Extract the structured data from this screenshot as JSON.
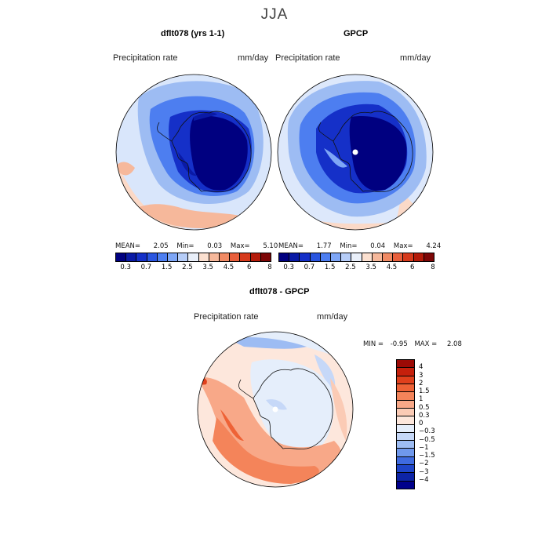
{
  "figure": {
    "season": "JJA",
    "panels": [
      {
        "title": "dflt078 (yrs 1-1)",
        "field_label": "Precipitation rate",
        "units": "mm/day",
        "stats": {
          "mean_label": "MEAN=",
          "mean": "2.05",
          "min_label": "Min=",
          "min": "0.03",
          "max_label": "Max=",
          "max": "5.10"
        }
      },
      {
        "title": "GPCP",
        "field_label": "Precipitation rate",
        "units": "mm/day",
        "stats": {
          "mean_label": "MEAN=",
          "mean": "1.77",
          "min_label": "Min=",
          "min": "0.04",
          "max_label": "Max=",
          "max": "4.24"
        }
      },
      {
        "title": "dflt078 - GPCP",
        "field_label": "Precipitation rate",
        "units": "mm/day",
        "stats": {
          "min_label": "MIN =",
          "min": "-0.95",
          "max_label": "MAX =",
          "max": "2.08"
        }
      }
    ],
    "precip_colorbar": {
      "labels": [
        "0.3",
        "0.7",
        "1.5",
        "2.5",
        "3.5",
        "4.5",
        "6",
        "8"
      ],
      "colors": [
        "#000080",
        "#0a1aa6",
        "#1530c8",
        "#2a55e0",
        "#4d7ef0",
        "#7ea6f6",
        "#b6cdf8",
        "#e9eff9",
        "#fbe0d0",
        "#f6b89b",
        "#f08a64",
        "#e85f3c",
        "#d63a1c",
        "#b41b0a",
        "#7d0707"
      ]
    },
    "diff_colorbar": {
      "labels": [
        "4",
        "3",
        "2",
        "1.5",
        "1",
        "0.5",
        "0.3",
        "0",
        "−0.3",
        "−0.5",
        "−1",
        "−1.5",
        "−2",
        "−3",
        "−4"
      ],
      "colors": [
        "#9b0a05",
        "#c5200c",
        "#e0401c",
        "#ee6236",
        "#f4845a",
        "#f8a888",
        "#fbcbb5",
        "#fde7dc",
        "#e5eefb",
        "#c6d8f8",
        "#9dbcf3",
        "#6f98ec",
        "#3f6be0",
        "#1f45c8",
        "#0d24a6",
        "#00008b"
      ]
    }
  }
}
